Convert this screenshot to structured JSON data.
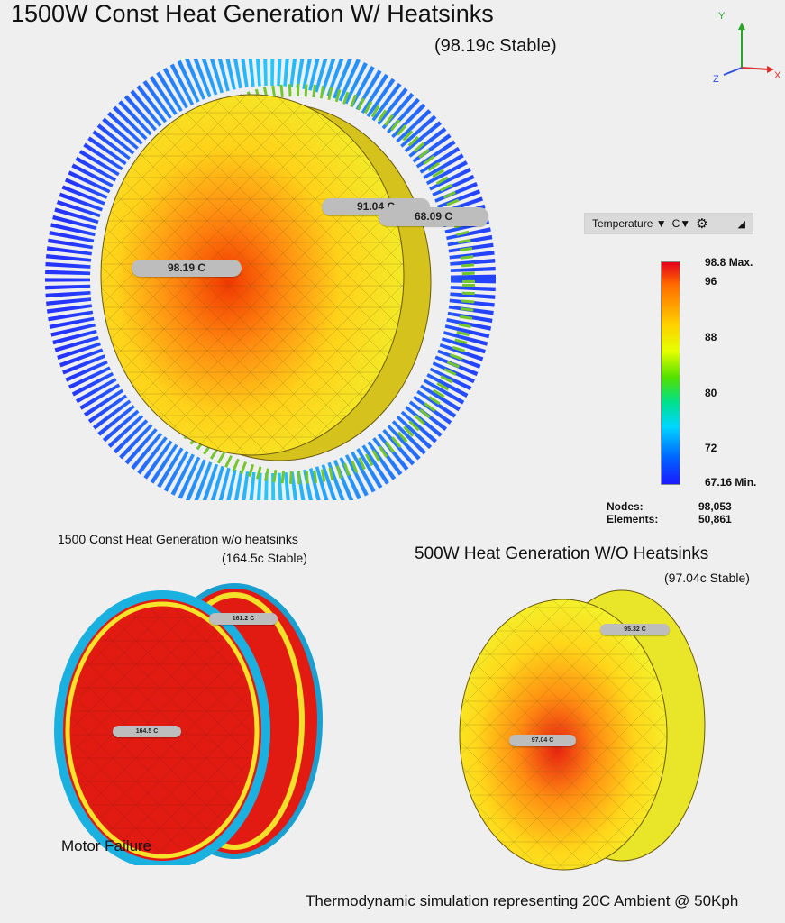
{
  "main_view": {
    "title": "1500W Const Heat Generation W/ Heatsinks",
    "subtitle": "(98.19c Stable)",
    "probes": [
      "98.19 C",
      "91.04 C",
      "68.09 C"
    ]
  },
  "axis_triad": {
    "y": "Y",
    "z": "Z",
    "x": "X"
  },
  "legend": {
    "quantity": "Temperature",
    "unit": "C",
    "max_label": "98.8 Max.",
    "min_label": "67.16 Min.",
    "ticks": [
      "96",
      "88",
      "80",
      "72"
    ],
    "colors": {
      "max": "#e4001a",
      "mid": "#e6ff00",
      "min": "#1a1aff"
    }
  },
  "mesh_stats": {
    "nodes_label": "Nodes:",
    "nodes_value": "98,053",
    "elements_label": "Elements:",
    "elements_value": "50,861"
  },
  "left_view": {
    "title": "1500 Const Heat Generation w/o heatsinks",
    "subtitle": "(164.5c Stable)",
    "probes": [
      "161.2 C",
      "164.5 C"
    ],
    "note": "Motor Failure"
  },
  "right_view": {
    "title": "500W Heat Generation W/O Heatsinks",
    "subtitle": "(97.04c Stable)",
    "probes": [
      "95.32 C",
      "97.04 C"
    ]
  },
  "footer": "Thermodynamic simulation representing 20C Ambient @ 50Kph"
}
